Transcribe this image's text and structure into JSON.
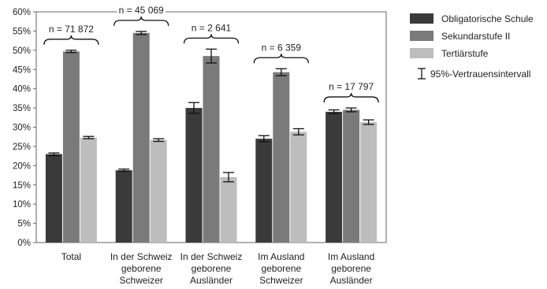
{
  "chart_data": {
    "type": "bar",
    "categories": [
      [
        "Total"
      ],
      [
        "In der Schweiz",
        "geborene",
        "Schweizer"
      ],
      [
        "In der Schweiz",
        "geborene",
        "Ausländer"
      ],
      [
        "Im Ausland",
        "geborene",
        "Schweizer"
      ],
      [
        "Im Ausland",
        "geborene",
        "Ausländer"
      ]
    ],
    "series": [
      {
        "name": "Obligatorische Schule",
        "color": "#3a3a3a",
        "values": [
          23.0,
          18.8,
          35.0,
          27.0,
          34.0
        ],
        "ci": [
          [
            22.6,
            23.3
          ],
          [
            18.5,
            19.1
          ],
          [
            33.6,
            36.4
          ],
          [
            26.2,
            27.8
          ],
          [
            33.5,
            34.5
          ]
        ]
      },
      {
        "name": "Sekundarstufe II",
        "color": "#7a7a7a",
        "values": [
          49.7,
          54.5,
          48.5,
          44.3,
          34.5
        ],
        "ci": [
          [
            49.4,
            50.0
          ],
          [
            54.1,
            54.9
          ],
          [
            46.7,
            50.3
          ],
          [
            43.4,
            45.2
          ],
          [
            34.0,
            35.0
          ]
        ]
      },
      {
        "name": "Tertiärstufe",
        "color": "#bdbdbd",
        "values": [
          27.3,
          26.7,
          17.0,
          28.8,
          31.3
        ],
        "ci": [
          [
            27.0,
            27.6
          ],
          [
            26.3,
            27.0
          ],
          [
            15.8,
            18.2
          ],
          [
            28.0,
            29.6
          ],
          [
            30.7,
            31.9
          ]
        ]
      }
    ],
    "n_labels": [
      "n = 71 872",
      "n = 45 069",
      "n = 2 641",
      "n = 6 359",
      "n = 17 797"
    ],
    "ci_legend_label": "95%-Vertrauensintervall",
    "y_ticks": [
      0,
      5,
      10,
      15,
      20,
      25,
      30,
      35,
      40,
      45,
      50,
      55,
      60
    ],
    "y_tick_suffix": "%",
    "ylim": [
      0,
      60
    ],
    "grid": false,
    "legend_position": "right",
    "title": "",
    "xlabel": "",
    "ylabel": ""
  }
}
